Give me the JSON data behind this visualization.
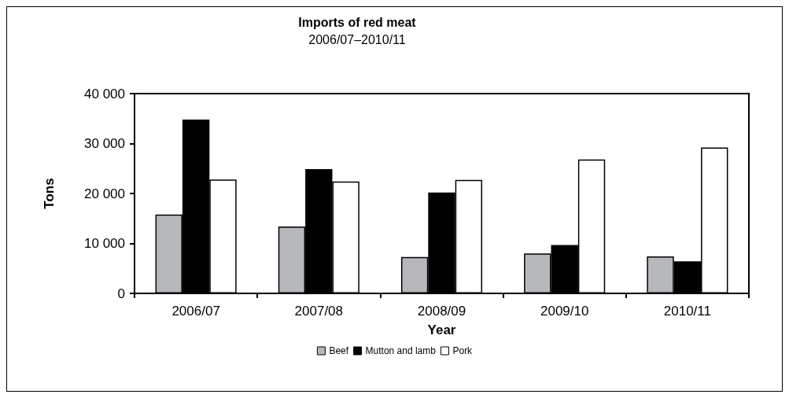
{
  "chart_data": {
    "type": "bar",
    "title": "Imports of red meat",
    "subtitle": "2006/07–2010/11",
    "xlabel": "Year",
    "ylabel": "Tons",
    "categories": [
      "2006/07",
      "2007/08",
      "2008/09",
      "2009/10",
      "2010/11"
    ],
    "series": [
      {
        "name": "Beef",
        "color": "#b7b8bc",
        "values": [
          15800,
          13400,
          7300,
          8000,
          7400
        ]
      },
      {
        "name": "Mutton and lamb",
        "color": "#000000",
        "values": [
          34800,
          24900,
          20200,
          9700,
          6400
        ]
      },
      {
        "name": "Pork",
        "color": "#ffffff",
        "values": [
          22800,
          22400,
          22700,
          26800,
          29200
        ]
      }
    ],
    "ylim": [
      0,
      40000
    ],
    "yticks": [
      0,
      {
        "value": 10000,
        "label": "10 000"
      },
      {
        "value": 20000,
        "label": "20 000"
      },
      {
        "value": 30000,
        "label": "30 000"
      },
      {
        "value": 40000,
        "label": "40 000"
      }
    ],
    "grid": false,
    "legend": "bottom"
  }
}
